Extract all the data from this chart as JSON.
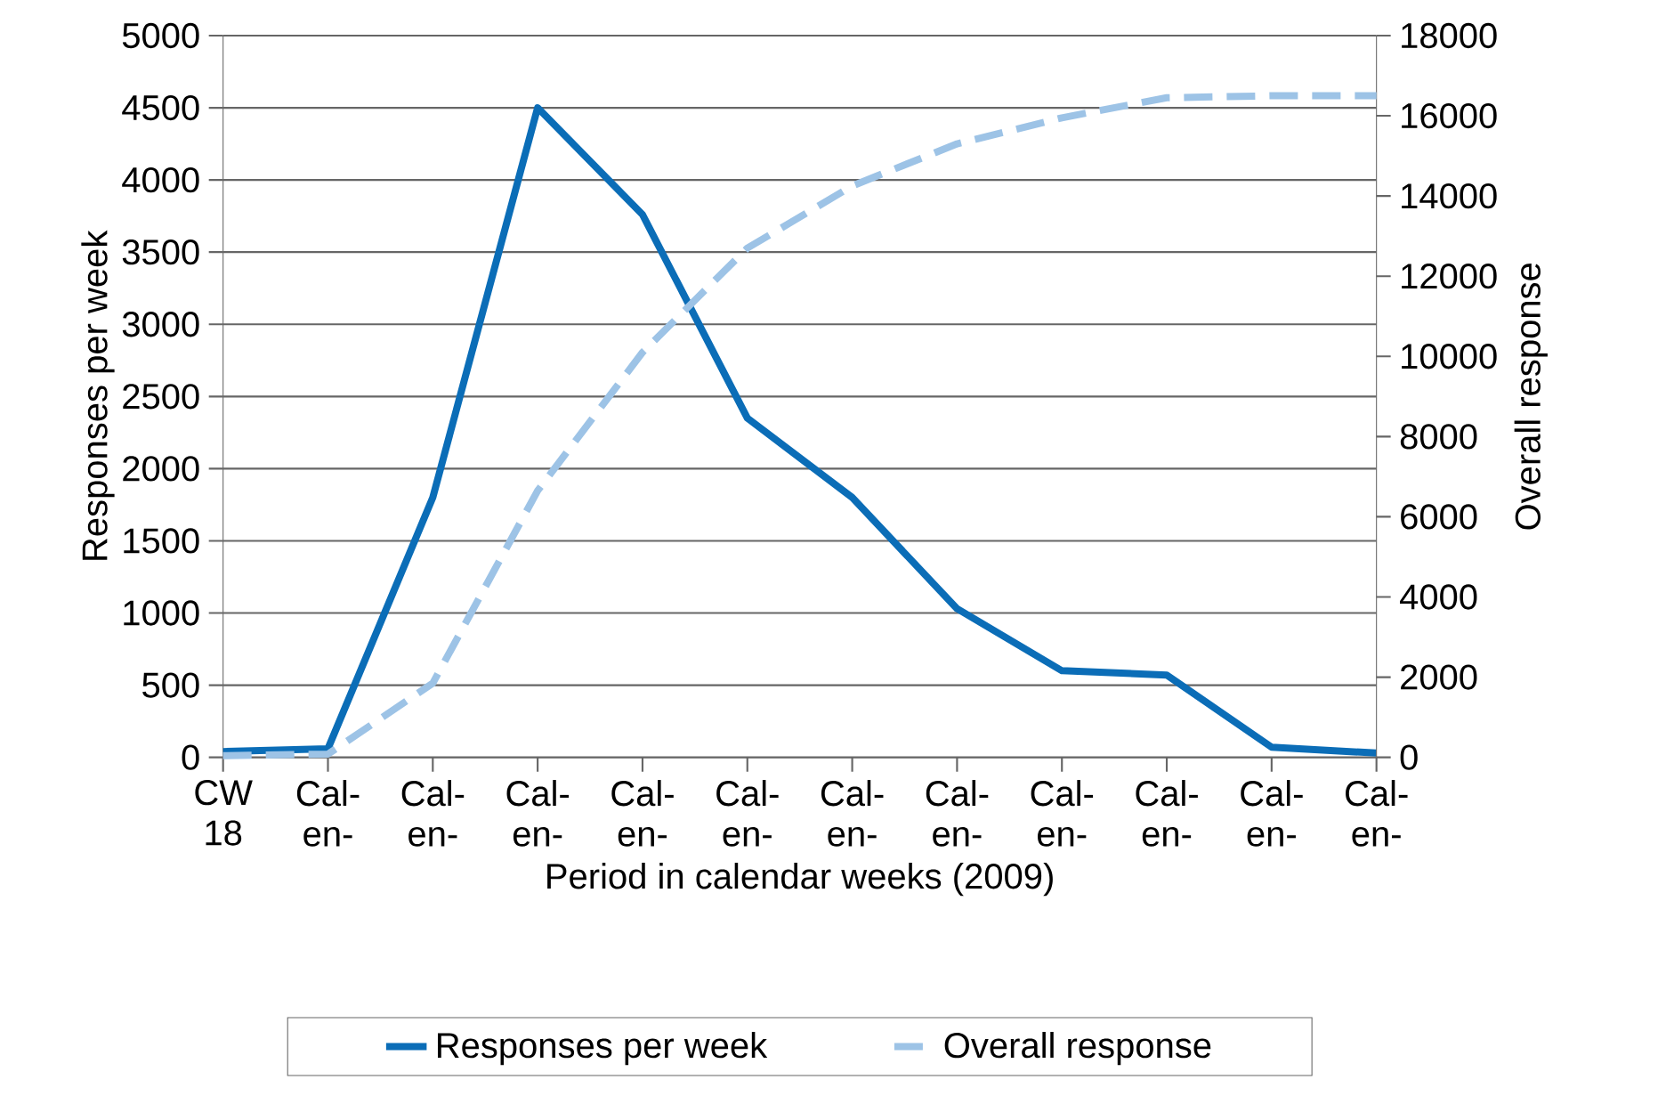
{
  "chart_data": {
    "type": "line",
    "xlabel": "Period in calendar weeks (2009)",
    "ylabel": "Responses per week",
    "y2label": "Overall response",
    "categories": [
      "CW 18",
      "Cal-en-",
      "Cal-en-",
      "Cal-en-",
      "Cal-en-",
      "Cal-en-",
      "Cal-en-",
      "Cal-en-",
      "Cal-en-",
      "Cal-en-",
      "Cal-en-",
      "Cal-en-"
    ],
    "series": [
      {
        "name": "Responses per week",
        "color": "#0b6db7",
        "line_style": "solid",
        "values": [
          40,
          60,
          1800,
          4500,
          3760,
          2350,
          1800,
          1030,
          600,
          570,
          70,
          30
        ]
      },
      {
        "name": "Overall response",
        "color": "#9dc3e6",
        "line_style": "dashed",
        "axis": "y2",
        "values": [
          40,
          80,
          1850,
          6650,
          10100,
          12700,
          14250,
          15300,
          15950,
          16450,
          16500,
          16500
        ]
      }
    ],
    "ylim": [
      0,
      5000
    ],
    "yticks": [
      0,
      500,
      1000,
      1500,
      2000,
      2500,
      3000,
      3500,
      4000,
      4500,
      5000
    ],
    "y2lim": [
      0,
      18000
    ],
    "y2ticks": [
      0,
      2000,
      4000,
      6000,
      8000,
      10000,
      12000,
      14000,
      16000,
      18000
    ],
    "grid": "y",
    "legend": "bottom",
    "marker": "none"
  }
}
